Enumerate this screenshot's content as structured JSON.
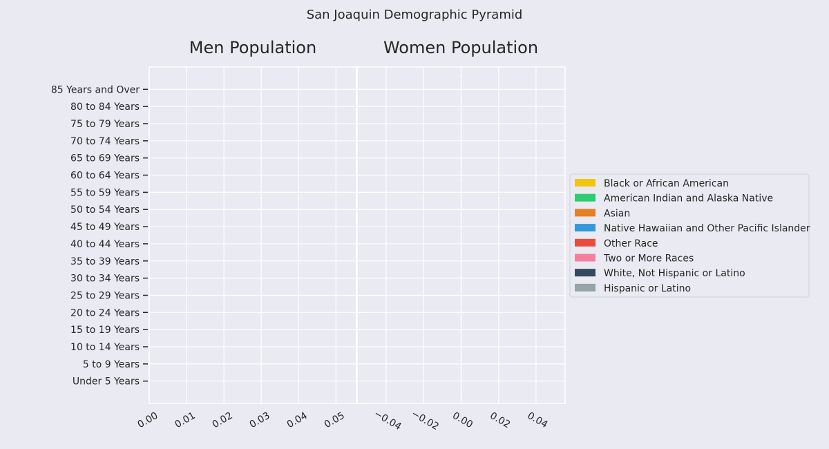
{
  "chart_data": {
    "type": "bar",
    "orientation": "horizontal",
    "suptitle": "San Joaquin Demographic Pyramid",
    "categories": [
      "Under 5 Years",
      "5 to 9 Years",
      "10 to 14 Years",
      "15 to 19 Years",
      "20 to 24 Years",
      "25 to 29 Years",
      "30 to 34 Years",
      "35 to 39 Years",
      "40 to 44 Years",
      "45 to 49 Years",
      "50 to 54 Years",
      "55 to 59 Years",
      "60 to 64 Years",
      "65 to 69 Years",
      "70 to 74 Years",
      "75 to 79 Years",
      "80 to 84 Years",
      "85 Years and Over"
    ],
    "series": [
      {
        "name": "Black or African American",
        "color": "#f1c40f",
        "men": [
          0,
          0,
          0,
          0,
          0,
          0,
          0,
          0,
          0,
          0,
          0,
          0,
          0,
          0,
          0,
          0,
          0,
          0
        ],
        "women": [
          0,
          0,
          0,
          0,
          0,
          0,
          0,
          0,
          0,
          0,
          0,
          0,
          0,
          0,
          0,
          0,
          0,
          0
        ]
      },
      {
        "name": "American Indian and Alaska Native",
        "color": "#2ecc71",
        "men": [
          0,
          0,
          0,
          0,
          0,
          0,
          0,
          0,
          0,
          0,
          0,
          0,
          0,
          0,
          0,
          0,
          0,
          0
        ],
        "women": [
          0,
          0,
          0,
          0,
          0,
          0,
          0,
          0,
          0,
          0,
          0,
          0,
          0,
          0,
          0,
          0,
          0,
          0
        ]
      },
      {
        "name": "Asian",
        "color": "#e67e22",
        "men": [
          0,
          0,
          0,
          0,
          0,
          0,
          0,
          0,
          0,
          0,
          0,
          0,
          0,
          0,
          0,
          0,
          0,
          0
        ],
        "women": [
          0,
          0,
          0,
          0,
          0,
          0,
          0,
          0,
          0,
          0,
          0,
          0,
          0,
          0,
          0,
          0,
          0,
          0
        ]
      },
      {
        "name": "Native Hawaiian and Other Pacific Islander",
        "color": "#3498db",
        "men": [
          0,
          0,
          0,
          0,
          0,
          0,
          0,
          0,
          0,
          0,
          0,
          0,
          0,
          0,
          0,
          0,
          0,
          0
        ],
        "women": [
          0,
          0,
          0,
          0,
          0,
          0,
          0,
          0,
          0,
          0,
          0,
          0,
          0,
          0,
          0,
          0,
          0,
          0
        ]
      },
      {
        "name": "Other Race",
        "color": "#e74c3c",
        "men": [
          0,
          0,
          0,
          0,
          0,
          0,
          0,
          0,
          0,
          0,
          0,
          0,
          0,
          0,
          0,
          0,
          0,
          0
        ],
        "women": [
          0,
          0,
          0,
          0,
          0,
          0,
          0,
          0,
          0,
          0,
          0,
          0,
          0,
          0,
          0,
          0,
          0,
          0
        ]
      },
      {
        "name": "Two or More Races",
        "color": "#f67f9f",
        "men": [
          0,
          0,
          0,
          0,
          0,
          0,
          0,
          0,
          0,
          0,
          0,
          0,
          0,
          0,
          0,
          0,
          0,
          0
        ],
        "women": [
          0,
          0,
          0,
          0,
          0,
          0,
          0,
          0,
          0,
          0,
          0,
          0,
          0,
          0,
          0,
          0,
          0,
          0
        ]
      },
      {
        "name": "White, Not Hispanic or Latino",
        "color": "#34495e",
        "men": [
          0,
          0,
          0,
          0,
          0,
          0,
          0,
          0,
          0,
          0,
          0,
          0,
          0,
          0,
          0,
          0,
          0,
          0
        ],
        "women": [
          0,
          0,
          0,
          0,
          0,
          0,
          0,
          0,
          0,
          0,
          0,
          0,
          0,
          0,
          0,
          0,
          0,
          0
        ]
      },
      {
        "name": "Hispanic or Latino",
        "color": "#95a5a6",
        "men": [
          0,
          0,
          0,
          0,
          0,
          0,
          0,
          0,
          0,
          0,
          0,
          0,
          0,
          0,
          0,
          0,
          0,
          0
        ],
        "women": [
          0,
          0,
          0,
          0,
          0,
          0,
          0,
          0,
          0,
          0,
          0,
          0,
          0,
          0,
          0,
          0,
          0,
          0
        ]
      }
    ],
    "panels": [
      {
        "key": "men",
        "title": "Men Population",
        "xlim": [
          0,
          0.0555
        ],
        "xticks": [
          0,
          0.01,
          0.02,
          0.03,
          0.04,
          0.05
        ],
        "xtick_labels": [
          "0.00",
          "0.01",
          "0.02",
          "0.03",
          "0.04",
          "0.05"
        ]
      },
      {
        "key": "women",
        "title": "Women Population",
        "xlim": [
          -0.0555,
          0.0555
        ],
        "xticks": [
          -0.04,
          -0.02,
          0,
          0.02,
          0.04
        ],
        "xtick_labels": [
          "−0.04",
          "−0.02",
          "0.00",
          "0.02",
          "0.04"
        ]
      }
    ],
    "ylim": [
      -1.3,
      18.3
    ],
    "grid": true,
    "legend_placement": "center-right"
  }
}
